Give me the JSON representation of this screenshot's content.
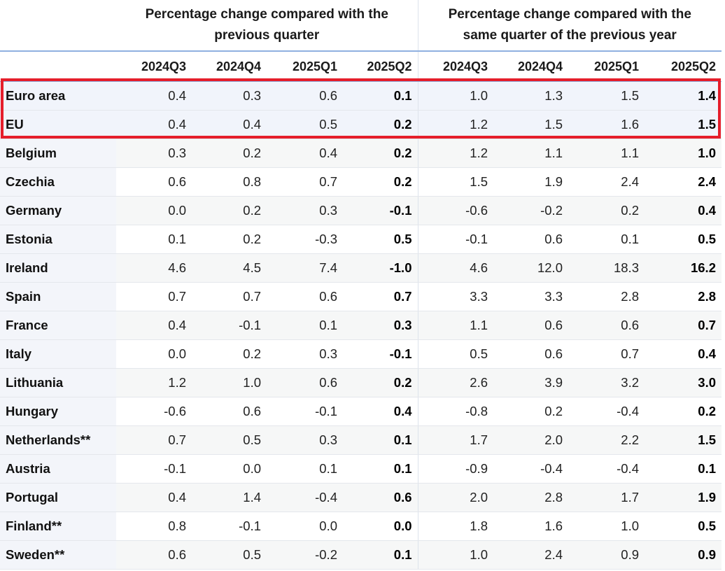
{
  "header": {
    "group1_line1": "Percentage change compared with the",
    "group1_line2": "previous quarter",
    "group2_line1": "Percentage change compared with the",
    "group2_line2": "same quarter of the previous year",
    "quarters": [
      "2024Q3",
      "2024Q4",
      "2025Q1",
      "2025Q2",
      "2024Q3",
      "2024Q4",
      "2025Q1",
      "2025Q2"
    ]
  },
  "colors": {
    "highlight_border": "#e51e2b",
    "header_rule": "#8fb0e0"
  },
  "rows": [
    {
      "country": "Euro area",
      "values": [
        "0.4",
        "0.3",
        "0.6",
        "0.1",
        "1.0",
        "1.3",
        "1.5",
        "1.4"
      ]
    },
    {
      "country": "EU",
      "values": [
        "0.4",
        "0.4",
        "0.5",
        "0.2",
        "1.2",
        "1.5",
        "1.6",
        "1.5"
      ]
    },
    {
      "country": "Belgium",
      "values": [
        "0.3",
        "0.2",
        "0.4",
        "0.2",
        "1.2",
        "1.1",
        "1.1",
        "1.0"
      ]
    },
    {
      "country": "Czechia",
      "values": [
        "0.6",
        "0.8",
        "0.7",
        "0.2",
        "1.5",
        "1.9",
        "2.4",
        "2.4"
      ]
    },
    {
      "country": "Germany",
      "values": [
        "0.0",
        "0.2",
        "0.3",
        "-0.1",
        "-0.6",
        "-0.2",
        "0.2",
        "0.4"
      ]
    },
    {
      "country": "Estonia",
      "values": [
        "0.1",
        "0.2",
        "-0.3",
        "0.5",
        "-0.1",
        "0.6",
        "0.1",
        "0.5"
      ]
    },
    {
      "country": "Ireland",
      "values": [
        "4.6",
        "4.5",
        "7.4",
        "-1.0",
        "4.6",
        "12.0",
        "18.3",
        "16.2"
      ]
    },
    {
      "country": "Spain",
      "values": [
        "0.7",
        "0.7",
        "0.6",
        "0.7",
        "3.3",
        "3.3",
        "2.8",
        "2.8"
      ]
    },
    {
      "country": "France",
      "values": [
        "0.4",
        "-0.1",
        "0.1",
        "0.3",
        "1.1",
        "0.6",
        "0.6",
        "0.7"
      ]
    },
    {
      "country": "Italy",
      "values": [
        "0.0",
        "0.2",
        "0.3",
        "-0.1",
        "0.5",
        "0.6",
        "0.7",
        "0.4"
      ]
    },
    {
      "country": "Lithuania",
      "values": [
        "1.2",
        "1.0",
        "0.6",
        "0.2",
        "2.6",
        "3.9",
        "3.2",
        "3.0"
      ]
    },
    {
      "country": "Hungary",
      "values": [
        "-0.6",
        "0.6",
        "-0.1",
        "0.4",
        "-0.8",
        "0.2",
        "-0.4",
        "0.2"
      ]
    },
    {
      "country": "Netherlands**",
      "values": [
        "0.7",
        "0.5",
        "0.3",
        "0.1",
        "1.7",
        "2.0",
        "2.2",
        "1.5"
      ]
    },
    {
      "country": "Austria",
      "values": [
        "-0.1",
        "0.0",
        "0.1",
        "0.1",
        "-0.9",
        "-0.4",
        "-0.4",
        "0.1"
      ]
    },
    {
      "country": "Portugal",
      "values": [
        "0.4",
        "1.4",
        "-0.4",
        "0.6",
        "2.0",
        "2.8",
        "1.7",
        "1.9"
      ]
    },
    {
      "country": "Finland**",
      "values": [
        "0.8",
        "-0.1",
        "0.0",
        "0.0",
        "1.8",
        "1.6",
        "1.0",
        "0.5"
      ]
    },
    {
      "country": "Sweden**",
      "values": [
        "0.6",
        "0.5",
        "-0.2",
        "0.1",
        "1.0",
        "2.4",
        "0.9",
        "0.9"
      ]
    }
  ]
}
